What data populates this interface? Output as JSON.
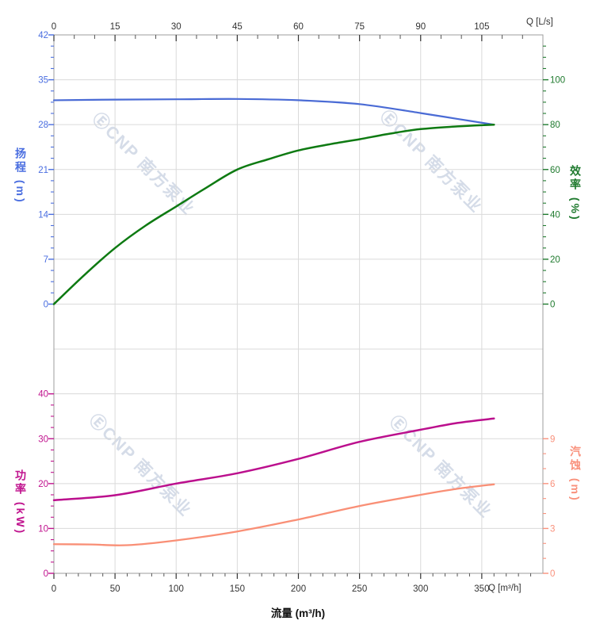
{
  "watermark": {
    "text": "ⒺCNP 南方泵业"
  },
  "chart_data": {
    "type": "line",
    "title": "",
    "grid": "on",
    "axes": {
      "flow_ls_top": {
        "label": "Q [L/s]",
        "ticks": [
          0,
          15,
          30,
          45,
          60,
          75,
          90,
          105
        ],
        "minor_step": 5,
        "range": [
          0,
          120
        ],
        "color": "#333333"
      },
      "flow_m3h_bottom": {
        "label": "Q [m³/h]",
        "title": "流量 (m³/h)",
        "ticks": [
          0,
          50,
          100,
          150,
          200,
          250,
          300,
          350
        ],
        "minor_step": 10,
        "range": [
          0,
          400
        ],
        "color": "#333333"
      },
      "head": {
        "title": "扬程 (m)",
        "ticks": [
          0,
          7,
          14,
          21,
          28,
          35,
          42
        ],
        "minor_step": 1.75,
        "range": [
          0,
          42
        ],
        "color": "#4a6ee0"
      },
      "efficiency": {
        "title": "效率 (%)",
        "ticks": [
          0,
          20,
          40,
          60,
          80,
          100
        ],
        "minor_step": 5,
        "minor_max": 115,
        "range": [
          0,
          100
        ],
        "color": "#1f7a2e"
      },
      "power": {
        "title": "功率 (kW)",
        "ticks": [
          0,
          10,
          20,
          30,
          40
        ],
        "minor_step": 2.5,
        "range": [
          0,
          40
        ],
        "color": "#c0138e"
      },
      "npsh": {
        "title": "汽蚀 (m)",
        "ticks": [
          0,
          3,
          6,
          9
        ],
        "minor_step": 1,
        "range": [
          0,
          9
        ],
        "color": "#f9917c"
      }
    },
    "series": [
      {
        "name": "head",
        "axis": "head",
        "color": "#4a6bd5",
        "width": 2.2,
        "points": [
          [
            0,
            31.8
          ],
          [
            50,
            31.9
          ],
          [
            100,
            31.95
          ],
          [
            150,
            32.0
          ],
          [
            200,
            31.8
          ],
          [
            250,
            31.2
          ],
          [
            300,
            29.8
          ],
          [
            330,
            28.9
          ],
          [
            360,
            28.0
          ]
        ]
      },
      {
        "name": "efficiency",
        "axis": "efficiency",
        "color": "#0e7a12",
        "width": 2.5,
        "points": [
          [
            0,
            0
          ],
          [
            25,
            13
          ],
          [
            50,
            25
          ],
          [
            75,
            35
          ],
          [
            100,
            43.5
          ],
          [
            125,
            52
          ],
          [
            150,
            60
          ],
          [
            175,
            64.5
          ],
          [
            200,
            68.5
          ],
          [
            225,
            71.2
          ],
          [
            250,
            73.5
          ],
          [
            275,
            76
          ],
          [
            300,
            78
          ],
          [
            330,
            79.2
          ],
          [
            360,
            80
          ]
        ]
      },
      {
        "name": "power",
        "axis": "power",
        "color": "#bb0f8d",
        "width": 2.5,
        "points": [
          [
            0,
            16.3
          ],
          [
            50,
            17.4
          ],
          [
            100,
            20.0
          ],
          [
            150,
            22.3
          ],
          [
            200,
            25.5
          ],
          [
            250,
            29.3
          ],
          [
            300,
            32.0
          ],
          [
            330,
            33.5
          ],
          [
            360,
            34.5
          ]
        ]
      },
      {
        "name": "npsh",
        "axis": "npsh",
        "color": "#f98f76",
        "width": 2.3,
        "points": [
          [
            0,
            1.95
          ],
          [
            30,
            1.93
          ],
          [
            60,
            1.88
          ],
          [
            100,
            2.2
          ],
          [
            150,
            2.8
          ],
          [
            200,
            3.6
          ],
          [
            250,
            4.5
          ],
          [
            300,
            5.25
          ],
          [
            330,
            5.65
          ],
          [
            360,
            5.95
          ]
        ]
      }
    ]
  }
}
